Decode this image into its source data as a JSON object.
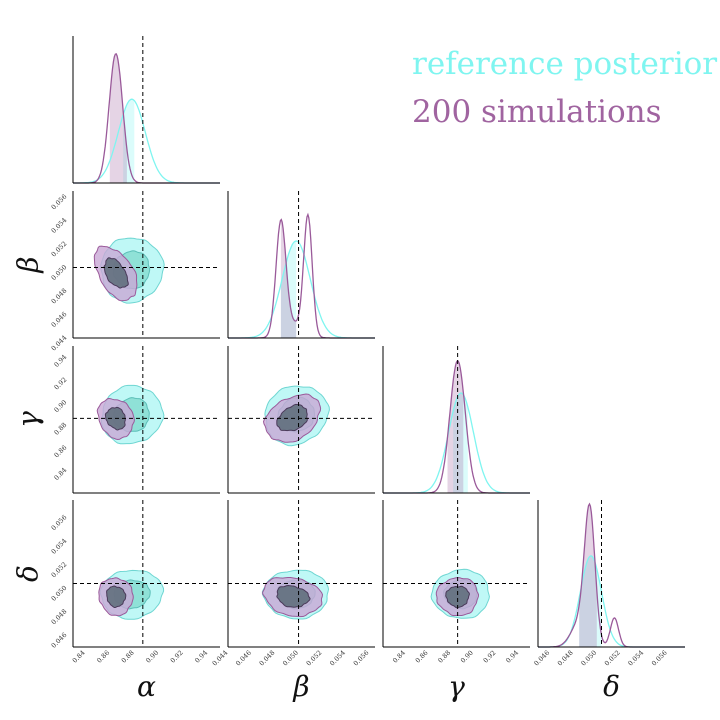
{
  "chart_data": {
    "type": "corner",
    "parameters": [
      {
        "symbol": "α",
        "ticks": [
          "0.84",
          "0.86",
          "0.88",
          "0.90",
          "0.92",
          "0.94"
        ],
        "range": [
          0.83,
          0.95
        ],
        "truth": 0.887
      },
      {
        "symbol": "β",
        "ticks": [
          "0.044",
          "0.046",
          "0.048",
          "0.050",
          "0.052",
          "0.054",
          "0.056"
        ],
        "range": [
          0.044,
          0.0565
        ],
        "truth": 0.05
      },
      {
        "symbol": "γ",
        "ticks": [
          "0.84",
          "0.86",
          "0.88",
          "0.90",
          "0.92",
          "0.94"
        ],
        "range": [
          0.82,
          0.95
        ],
        "truth": 0.886
      },
      {
        "symbol": "δ",
        "ticks": [
          "0.046",
          "0.048",
          "0.050",
          "0.052",
          "0.054",
          "0.056"
        ],
        "range": [
          0.045,
          0.0575
        ],
        "truth": 0.0504
      }
    ],
    "series": [
      {
        "name": "reference posterior",
        "color": "#7ff5f0",
        "means": [
          0.878,
          0.0498,
          0.889,
          0.0495
        ],
        "sigmas": [
          0.011,
          0.0012,
          0.011,
          0.0009
        ],
        "credible_band": [
          [
            0.871,
            0.88
          ],
          [
            0.0485,
            0.0498
          ],
          [
            0.882,
            0.895
          ],
          [
            0.0485,
            0.0504
          ]
        ]
      },
      {
        "name": "200 simulations",
        "color": "#a064a0",
        "means": [
          0.865,
          0.0495,
          0.886,
          0.0493
        ],
        "sigmas": [
          0.006,
          0.0011,
          0.008,
          0.0007
        ],
        "credible_band": [
          [
            0.86,
            0.874
          ],
          [
            0.0485,
            0.0498
          ],
          [
            0.877,
            0.891
          ],
          [
            0.0485,
            0.05
          ]
        ],
        "bimodal": {
          "β": [
            0.0485,
            0.0508
          ],
          "δ": [
            0.0494,
            0.0515
          ]
        }
      }
    ],
    "legend_position": "top-right",
    "truth_lines": "dashed black",
    "grid": false
  },
  "legend": {
    "items": [
      {
        "label": "reference posterior",
        "color": "#7ff5f0"
      },
      {
        "label": "200 simulations",
        "color": "#a064a0"
      }
    ]
  }
}
